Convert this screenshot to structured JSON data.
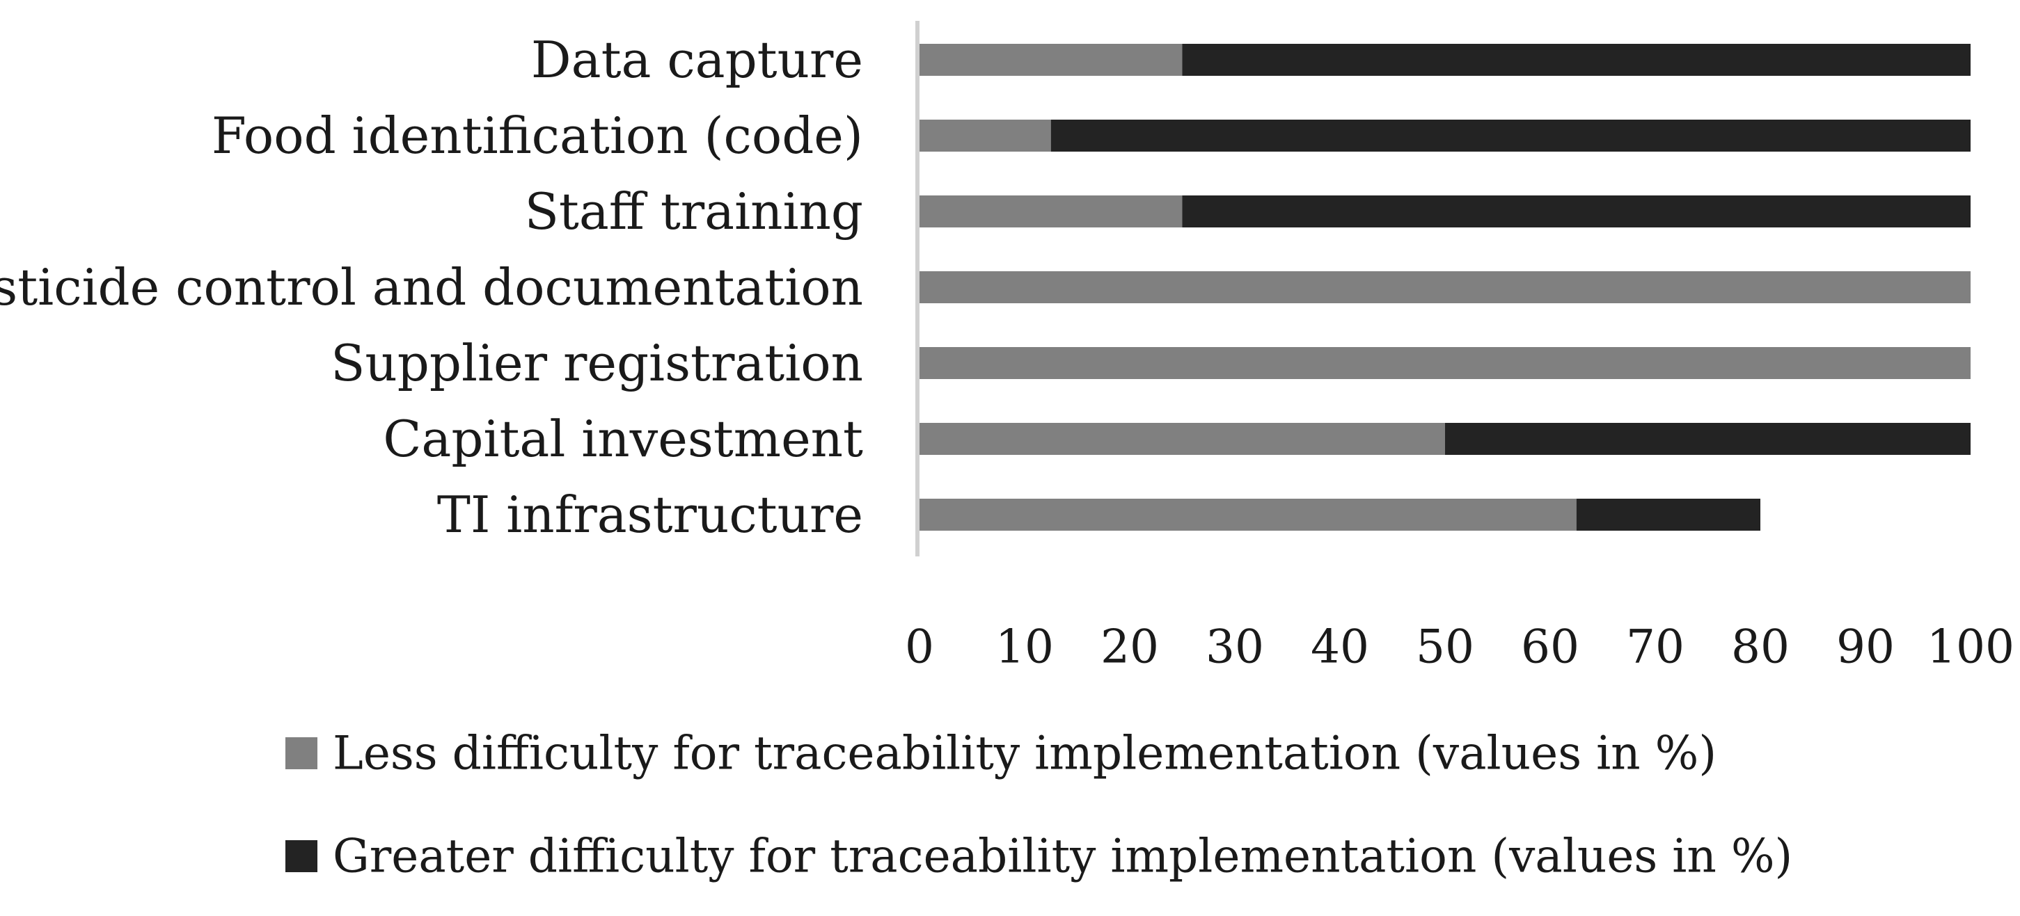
{
  "chart_data": {
    "type": "bar",
    "orientation": "horizontal",
    "stacked": true,
    "categories": [
      "Data capture",
      "Food identification (code)",
      "Staff training",
      "Pesticide control and documentation",
      "Supplier registration",
      "Capital investment",
      "TI infrastructure"
    ],
    "series": [
      {
        "name": "Less difficulty for traceability implementation (values in %)",
        "color": "#808080",
        "values": [
          25,
          12.5,
          25,
          100,
          100,
          50,
          62.5
        ]
      },
      {
        "name": "Greater difficulty for traceability implementation (values in %)",
        "color": "#232323",
        "values": [
          75,
          87.5,
          75,
          0,
          0,
          50,
          17.5
        ]
      }
    ],
    "xlim": [
      0,
      100
    ],
    "xticks": [
      "0",
      "10",
      "20",
      "30",
      "40",
      "50",
      "60",
      "70",
      "80",
      "90",
      "100"
    ],
    "grid": false,
    "legend_position": "bottom"
  }
}
